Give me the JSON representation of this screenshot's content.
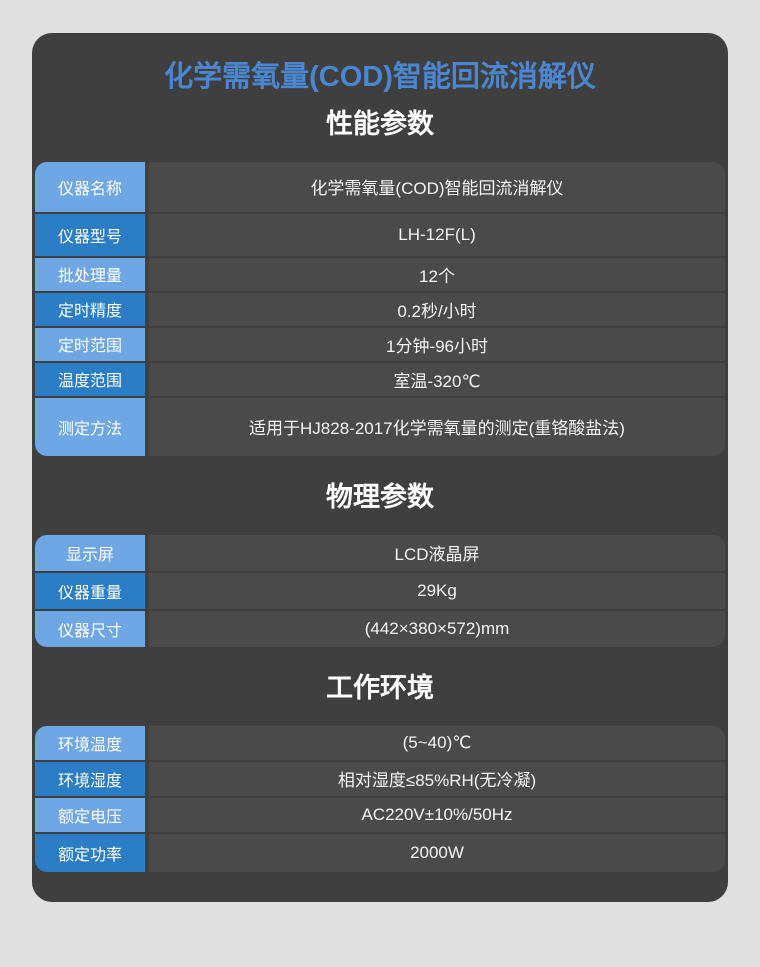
{
  "title": "化学需氧量(COD)智能回流消解仪",
  "colors": {
    "page_background": "#e0e0e0",
    "card_background": "#3f3f3f",
    "value_cell_background": "#4a4a4a",
    "label_light_blue": "#6ea7e4",
    "label_dark_blue": "#2b7dc6",
    "title_blue": "#4b87d1",
    "text_white": "#ffffff"
  },
  "sections": [
    {
      "heading": "性能参数",
      "rows": [
        {
          "label": "仪器名称",
          "value": "化学需氧量(COD)智能回流消解仪"
        },
        {
          "label": "仪器型号",
          "value": "LH-12F(L)"
        },
        {
          "label": "批处理量",
          "value": "12个"
        },
        {
          "label": "定时精度",
          "value": "0.2秒/小时"
        },
        {
          "label": "定时范围",
          "value": "1分钟-96小时"
        },
        {
          "label": "温度范围",
          "value": "室温-320℃"
        },
        {
          "label": "测定方法",
          "value": "适用于HJ828-2017化学需氧量的测定(重铬酸盐法)"
        }
      ]
    },
    {
      "heading": "物理参数",
      "rows": [
        {
          "label": "显示屏",
          "value": "LCD液晶屏"
        },
        {
          "label": "仪器重量",
          "value": "29Kg"
        },
        {
          "label": "仪器尺寸",
          "value": "(442×380×572)mm"
        }
      ]
    },
    {
      "heading": "工作环境",
      "rows": [
        {
          "label": "环境温度",
          "value": "(5~40)℃"
        },
        {
          "label": "环境湿度",
          "value": "相对湿度≤85%RH(无冷凝)"
        },
        {
          "label": "额定电压",
          "value": "AC220V±10%/50Hz"
        },
        {
          "label": "额定功率",
          "value": "2000W"
        }
      ]
    }
  ]
}
